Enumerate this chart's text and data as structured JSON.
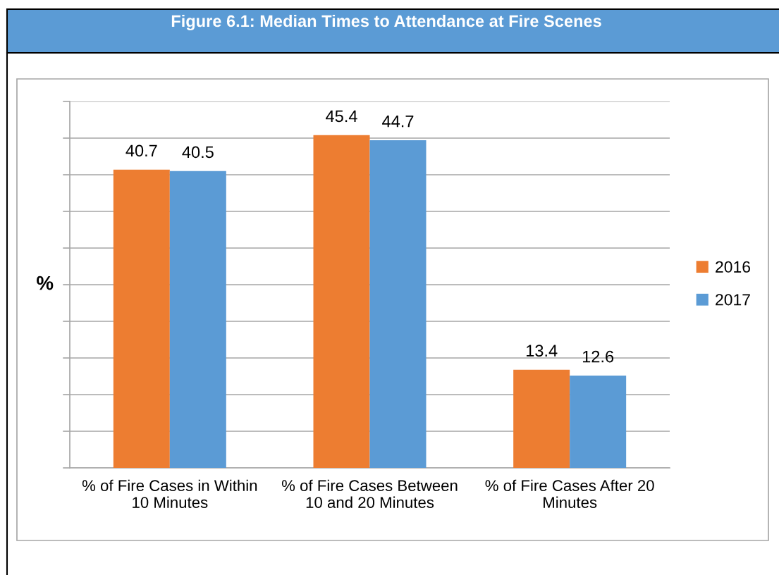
{
  "chart_data": {
    "type": "bar",
    "title": "Figure 6.1: Median Times to Attendance at Fire Scenes",
    "ylabel": "%",
    "categories": [
      "% of Fire Cases in Within\n10 Minutes",
      "% of Fire Cases Between\n10 and 20 Minutes",
      "% of Fire Cases After 20\nMinutes"
    ],
    "series": [
      {
        "name": "2016",
        "color": "#ed7d31",
        "values": [
          40.7,
          45.4,
          13.4
        ]
      },
      {
        "name": "2017",
        "color": "#5b9bd5",
        "values": [
          40.5,
          44.7,
          12.6
        ]
      }
    ],
    "ylim": [
      0,
      50
    ],
    "yticks": [
      {
        "value": 0,
        "label": null
      },
      {
        "value": 5,
        "label": null
      },
      {
        "value": 10,
        "label": null
      },
      {
        "value": 15,
        "label": null
      },
      {
        "value": 20,
        "label": null
      },
      {
        "value": 25,
        "label": null
      },
      {
        "value": 30,
        "label": null
      },
      {
        "value": 35,
        "label": null
      },
      {
        "value": 40,
        "label": null
      },
      {
        "value": 45,
        "label": null
      },
      {
        "value": 50,
        "label": null
      }
    ],
    "grid": "y",
    "legend": "right",
    "data_labels": true
  }
}
